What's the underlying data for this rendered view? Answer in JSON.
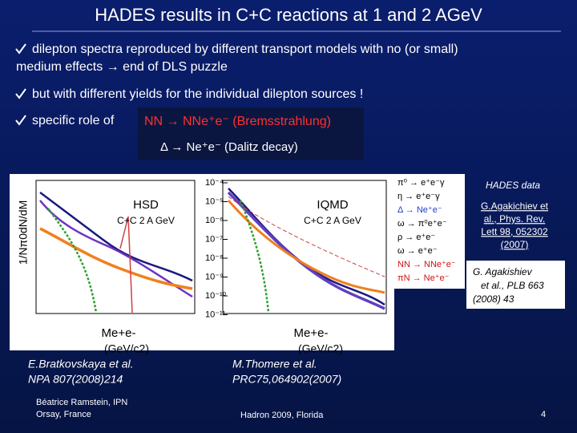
{
  "header": {
    "title": "HADES results in C+C reactions at 1 and 2 AGeV"
  },
  "bullets": [
    {
      "lines": [
        "dilepton spectra reproduced by different  transport models with no (or small)",
        "medium effects  →  end of DLS puzzle"
      ]
    },
    {
      "lines": [
        "but with different yields for the individual dilepton sources !"
      ]
    },
    {
      "lines": [
        "specific role of"
      ]
    }
  ],
  "highlight": {
    "bremsstrahlung": "NN → NNe⁺e⁻ (Bremsstrahlung)",
    "dalitz": "Δ → Ne⁺e⁻ (Dalitz decay)"
  },
  "left_plot": {
    "y_label": "1/Nπ0dN/dM",
    "model": "HSD",
    "system": "C+C 2 A GeV",
    "x_label": [
      "Me+e-",
      "(GeV/c2)"
    ],
    "reference": [
      "E.Bratkovskaya et al.",
      "NPA 807(2008)214"
    ]
  },
  "right_plot": {
    "model": "IQMD",
    "system": "C+C 2 A GeV",
    "x_label": [
      "Me+e-",
      "(GeV/c2)"
    ],
    "y_tick_labels": [
      "10⁻⁴",
      "10⁻⁵",
      "10⁻⁶",
      "10⁻⁷",
      "10⁻⁸",
      "10⁻⁹",
      "10⁻¹⁰",
      "10⁻¹¹"
    ],
    "reference": [
      "M.Thomere et al.",
      "PRC75,064902(2007)"
    ]
  },
  "legend": {
    "items": [
      {
        "label": "π⁰ → e⁺e⁻γ",
        "color": "#000000"
      },
      {
        "label": "η → e⁺e⁻γ",
        "color": "#000000"
      },
      {
        "label": "Δ → Ne⁺e⁻",
        "color": "#1f3fd0"
      },
      {
        "label": "ω → π⁰e⁺e⁻",
        "color": "#000000"
      },
      {
        "label": "ρ → e⁺e⁻",
        "color": "#000000"
      },
      {
        "label": "ω → e⁺e⁻",
        "color": "#000000"
      },
      {
        "label": "NN → NNe⁺e⁻",
        "color": "#d01010"
      },
      {
        "label": "πN → Ne⁺e⁻",
        "color": "#d01010"
      }
    ]
  },
  "data_refs": {
    "title": "HADES data",
    "prl": [
      "G.Agakichiev et",
      "al., Phys. Rev.",
      "Lett 98, 052302",
      "(2007)"
    ],
    "plb": [
      "G. Agakishiev",
      "et al., PLB 663",
      "(2008)  43"
    ]
  },
  "footer": {
    "author": [
      "Béatrice Ramstein, IPN",
      "Orsay, France"
    ],
    "conference": "Hadron  2009, Florida",
    "page": "4"
  }
}
